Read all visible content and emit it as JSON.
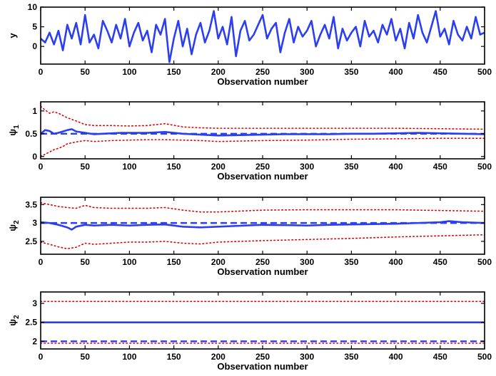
{
  "chart_data": [
    {
      "type": "line",
      "xlabel": "Observation number",
      "ylabel": "y",
      "xlim": [
        0,
        500
      ],
      "ylim": [
        -4.5,
        10
      ],
      "xticks": [
        0,
        50,
        100,
        150,
        200,
        250,
        300,
        350,
        400,
        450,
        500
      ],
      "yticks": [
        0,
        5,
        10
      ],
      "grid": false,
      "series": [
        {
          "style": "solid",
          "color": "#2b3ef0",
          "x": [
            0,
            5,
            10,
            15,
            20,
            25,
            30,
            35,
            40,
            45,
            50,
            55,
            60,
            65,
            70,
            75,
            80,
            85,
            90,
            95,
            100,
            105,
            110,
            115,
            120,
            125,
            130,
            135,
            140,
            145,
            150,
            155,
            160,
            165,
            170,
            175,
            180,
            185,
            190,
            195,
            200,
            205,
            210,
            215,
            220,
            225,
            230,
            235,
            240,
            245,
            250,
            255,
            260,
            265,
            270,
            275,
            280,
            285,
            290,
            295,
            300,
            305,
            310,
            315,
            320,
            325,
            330,
            335,
            340,
            345,
            350,
            355,
            360,
            365,
            370,
            375,
            380,
            385,
            390,
            395,
            400,
            405,
            410,
            415,
            420,
            425,
            430,
            435,
            440,
            445,
            450,
            455,
            460,
            465,
            470,
            475,
            480,
            485,
            490,
            495,
            500
          ],
          "values": [
            2.0,
            1.0,
            3.5,
            0.5,
            4.0,
            -1.0,
            5.5,
            2.0,
            6.0,
            0.5,
            8.0,
            1.0,
            3.0,
            -0.5,
            6.5,
            4.0,
            1.0,
            5.5,
            2.0,
            7.0,
            0.0,
            3.5,
            6.0,
            1.5,
            4.0,
            -1.5,
            5.5,
            3.0,
            7.0,
            -4.0,
            2.0,
            6.5,
            0.0,
            4.5,
            -2.0,
            3.0,
            6.0,
            1.0,
            4.0,
            9.0,
            2.0,
            5.0,
            0.5,
            7.5,
            -2.5,
            4.0,
            6.5,
            1.5,
            3.0,
            5.5,
            8.0,
            2.0,
            4.5,
            6.0,
            -1.5,
            3.5,
            7.0,
            1.0,
            5.0,
            2.5,
            4.0,
            6.5,
            0.0,
            3.0,
            5.5,
            2.0,
            7.5,
            -0.5,
            4.5,
            1.5,
            3.5,
            5.0,
            0.0,
            6.5,
            2.5,
            4.0,
            1.0,
            5.5,
            3.0,
            7.0,
            1.5,
            4.5,
            -0.5,
            6.0,
            2.0,
            8.0,
            3.5,
            1.0,
            5.0,
            9.0,
            2.5,
            4.5,
            0.5,
            6.5,
            3.0,
            1.5,
            5.0,
            2.0,
            7.5,
            3.0,
            3.5
          ]
        }
      ]
    },
    {
      "type": "line",
      "xlabel": "Observation number",
      "ylabel": "ψ₁",
      "xlim": [
        0,
        500
      ],
      "ylim": [
        -0.05,
        1.2
      ],
      "xticks": [
        0,
        50,
        100,
        150,
        200,
        250,
        300,
        350,
        400,
        450,
        500
      ],
      "yticks": [
        0,
        0.5,
        1
      ],
      "grid": false,
      "series": [
        {
          "style": "solid",
          "color": "#2b3ef0",
          "x": [
            0,
            5,
            10,
            15,
            20,
            25,
            30,
            35,
            40,
            50,
            60,
            70,
            80,
            90,
            100,
            120,
            140,
            160,
            180,
            200,
            225,
            250,
            275,
            300,
            325,
            350,
            375,
            400,
            425,
            450,
            475,
            500
          ],
          "values": [
            0.5,
            0.58,
            0.56,
            0.5,
            0.52,
            0.55,
            0.58,
            0.6,
            0.55,
            0.52,
            0.49,
            0.5,
            0.51,
            0.52,
            0.52,
            0.52,
            0.54,
            0.5,
            0.48,
            0.46,
            0.47,
            0.48,
            0.49,
            0.49,
            0.49,
            0.5,
            0.5,
            0.51,
            0.52,
            0.51,
            0.5,
            0.49
          ]
        },
        {
          "style": "dashed",
          "color": "#2b3ef0",
          "x": [
            0,
            500
          ],
          "values": [
            0.5,
            0.5
          ]
        },
        {
          "style": "dotted",
          "color": "#e00000",
          "x": [
            0,
            5,
            10,
            15,
            20,
            25,
            30,
            40,
            50,
            60,
            80,
            100,
            120,
            140,
            160,
            180,
            200,
            250,
            300,
            350,
            400,
            450,
            500
          ],
          "values": [
            1.1,
            1.02,
            0.95,
            0.98,
            0.95,
            0.9,
            0.85,
            0.78,
            0.7,
            0.68,
            0.68,
            0.67,
            0.68,
            0.72,
            0.65,
            0.63,
            0.62,
            0.62,
            0.62,
            0.62,
            0.62,
            0.61,
            0.6
          ]
        },
        {
          "style": "dotted",
          "color": "#e00000",
          "x": [
            0,
            5,
            10,
            15,
            20,
            25,
            30,
            40,
            50,
            60,
            80,
            100,
            120,
            140,
            160,
            180,
            200,
            250,
            300,
            350,
            400,
            450,
            500
          ],
          "values": [
            0.0,
            0.05,
            0.1,
            0.15,
            0.18,
            0.22,
            0.28,
            0.32,
            0.35,
            0.33,
            0.35,
            0.36,
            0.37,
            0.37,
            0.36,
            0.35,
            0.33,
            0.35,
            0.36,
            0.38,
            0.39,
            0.4,
            0.4
          ]
        }
      ]
    },
    {
      "type": "line",
      "xlabel": "Observation number",
      "ylabel": "ψ₂",
      "xlim": [
        0,
        500
      ],
      "ylim": [
        2.15,
        3.7
      ],
      "xticks": [
        0,
        50,
        100,
        150,
        200,
        250,
        300,
        350,
        400,
        450,
        500
      ],
      "yticks": [
        2.5,
        3,
        3.5
      ],
      "grid": false,
      "series": [
        {
          "style": "solid",
          "color": "#2b3ef0",
          "x": [
            0,
            10,
            20,
            30,
            35,
            40,
            50,
            60,
            70,
            80,
            100,
            120,
            140,
            160,
            180,
            200,
            220,
            250,
            280,
            300,
            325,
            350,
            375,
            400,
            425,
            450,
            460,
            475,
            500
          ],
          "values": [
            3.02,
            3.0,
            2.95,
            2.88,
            2.82,
            2.9,
            2.95,
            2.93,
            2.94,
            2.95,
            2.93,
            2.95,
            2.96,
            2.9,
            2.88,
            2.9,
            2.92,
            2.95,
            2.94,
            2.93,
            2.95,
            2.96,
            2.97,
            2.98,
            3.0,
            3.02,
            3.05,
            3.02,
            3.0
          ]
        },
        {
          "style": "dashed",
          "color": "#2b3ef0",
          "x": [
            0,
            500
          ],
          "values": [
            3.0,
            3.0
          ]
        },
        {
          "style": "dotted",
          "color": "#e00000",
          "x": [
            0,
            10,
            20,
            30,
            40,
            50,
            60,
            80,
            100,
            120,
            140,
            160,
            180,
            200,
            250,
            300,
            350,
            400,
            450,
            500
          ],
          "values": [
            3.55,
            3.5,
            3.45,
            3.42,
            3.4,
            3.48,
            3.42,
            3.4,
            3.4,
            3.4,
            3.42,
            3.35,
            3.3,
            3.3,
            3.35,
            3.36,
            3.36,
            3.36,
            3.34,
            3.32
          ]
        },
        {
          "style": "dotted",
          "color": "#e00000",
          "x": [
            0,
            10,
            20,
            30,
            40,
            50,
            60,
            80,
            100,
            120,
            140,
            160,
            180,
            200,
            250,
            300,
            350,
            400,
            450,
            500
          ],
          "values": [
            2.48,
            2.42,
            2.35,
            2.3,
            2.34,
            2.45,
            2.42,
            2.45,
            2.48,
            2.48,
            2.5,
            2.45,
            2.43,
            2.48,
            2.52,
            2.55,
            2.58,
            2.62,
            2.65,
            2.68
          ]
        }
      ]
    },
    {
      "type": "line",
      "xlabel": "Observation number",
      "ylabel": "ψ₂",
      "xlim": [
        0,
        500
      ],
      "ylim": [
        1.8,
        3.3
      ],
      "xticks": [
        0,
        50,
        100,
        150,
        200,
        250,
        300,
        350,
        400,
        450,
        500
      ],
      "yticks": [
        2,
        2.5,
        3
      ],
      "grid": false,
      "series": [
        {
          "style": "solid",
          "color": "#2b3ef0",
          "x": [
            0,
            500
          ],
          "values": [
            2.5,
            2.5
          ]
        },
        {
          "style": "dashed",
          "color": "#2b3ef0",
          "x": [
            0,
            500
          ],
          "values": [
            2.0,
            2.0
          ]
        },
        {
          "style": "dotted",
          "color": "#e00000",
          "x": [
            0,
            500
          ],
          "values": [
            3.05,
            3.05
          ]
        },
        {
          "style": "dotted",
          "color": "#e00000",
          "x": [
            0,
            500
          ],
          "values": [
            1.95,
            1.95
          ]
        }
      ]
    }
  ]
}
